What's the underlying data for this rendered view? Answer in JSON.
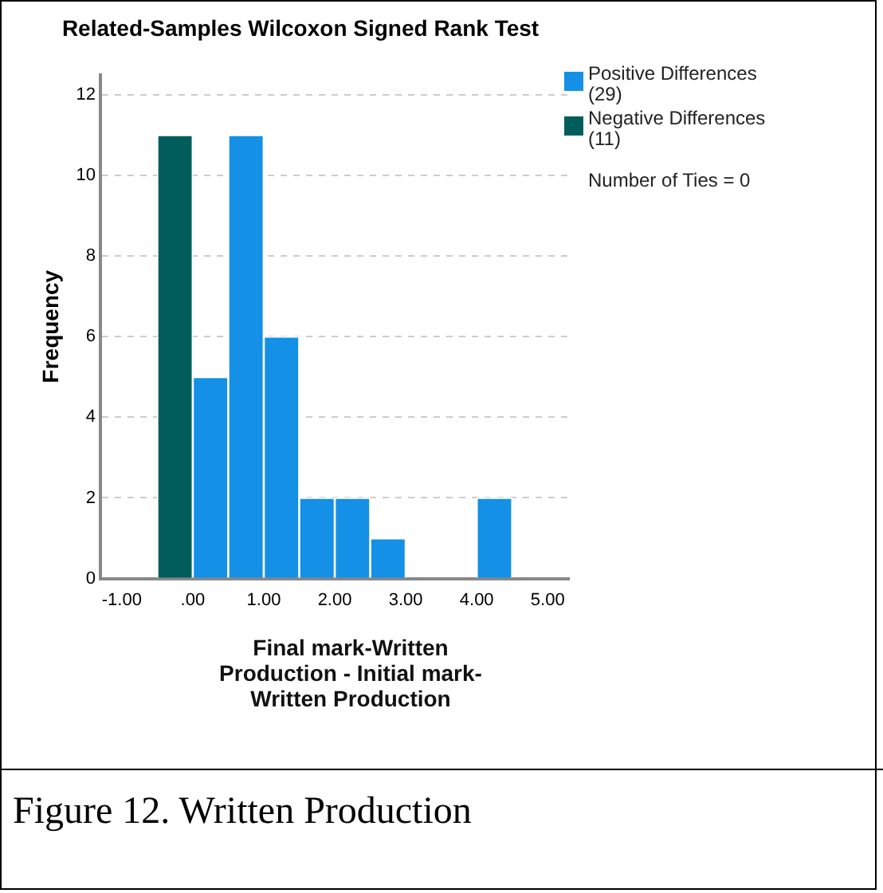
{
  "chart_data": {
    "type": "histogram",
    "title": "Related-Samples Wilcoxon Signed Rank Test",
    "xlabel": "Final mark-Written Production - Initial mark-Written Production",
    "ylabel": "Frequency",
    "bins": [
      -0.5,
      0,
      0.5,
      1,
      1.5,
      2,
      2.5,
      3,
      3.5,
      4,
      4.5
    ],
    "series": [
      {
        "name": "Positive Differences (29)",
        "color": "#1490e6",
        "values": [
          0,
          5,
          11,
          6,
          2,
          2,
          1,
          0,
          0,
          2
        ]
      },
      {
        "name": "Negative Differences (11)",
        "color": "#005d5b",
        "values": [
          11,
          0,
          0,
          0,
          0,
          0,
          0,
          0,
          0,
          0
        ]
      }
    ],
    "xlim": [
      -1.3,
      5.3
    ],
    "xticks": [
      {
        "value": -1,
        "label": "-1.00"
      },
      {
        "value": 0,
        "label": ".00"
      },
      {
        "value": 1,
        "label": "1.00"
      },
      {
        "value": 2,
        "label": "2.00"
      },
      {
        "value": 3,
        "label": "3.00"
      },
      {
        "value": 4,
        "label": "4.00"
      },
      {
        "value": 5,
        "label": "5.00"
      }
    ],
    "ylim": [
      0,
      12.5
    ],
    "yticks": [
      0,
      2,
      4,
      6,
      8,
      10,
      12
    ],
    "grid": "y",
    "legend": "top right",
    "annotations": [
      "Number of Ties = 0",
      "Figure 12. Written Production"
    ]
  }
}
